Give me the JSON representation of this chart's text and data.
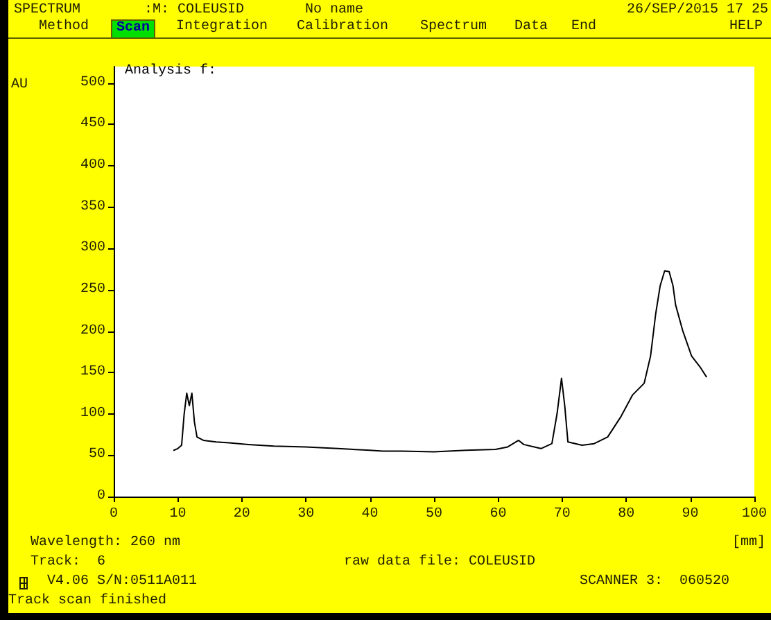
{
  "chart_data": {
    "type": "line",
    "xlabel": "[mm]",
    "ylabel": "AU",
    "annotations": [
      "SPECTRUM",
      ":M: COLEUSID",
      "No name",
      "26/SEP/2015 17 25",
      "Method",
      "Scan",
      "Integration",
      "Calibration",
      "Spectrum",
      "Data",
      "End",
      "HELP",
      "Analysis f:",
      "Wavelength: 260 nm",
      "Track:  6",
      "raw data file: COLEUSID",
      "V4.06 S/N:0511A011",
      "SCANNER 3:  060520",
      "Track scan finished"
    ],
    "x": [
      9.4,
      10,
      10.6,
      11,
      11.4,
      11.8,
      12.2,
      12.6,
      13,
      14,
      16,
      18,
      21,
      25,
      30,
      35,
      40,
      42,
      45,
      50,
      55,
      59.6,
      61.5,
      63.2,
      64,
      66.7,
      68.4,
      69.2,
      69.9,
      70.4,
      70.9,
      73.1,
      75,
      77.1,
      79.2,
      81,
      82.8,
      83.8,
      84.6,
      85.3,
      86,
      86.7,
      87.3,
      87.7,
      88.8,
      90.2,
      91.5,
      92.5
    ],
    "series": [
      {
        "color": "#000000",
        "values": [
          56,
          58,
          62,
          100,
          125,
          110,
          125,
          90,
          72,
          68,
          66,
          65,
          63,
          61,
          60,
          58,
          56,
          55,
          55,
          54,
          56,
          57,
          60,
          68,
          63,
          58,
          64,
          100,
          143,
          110,
          66,
          62,
          64,
          72,
          97,
          123,
          137,
          170,
          221,
          255,
          273,
          272,
          255,
          232,
          201,
          170,
          157,
          145
        ]
      }
    ],
    "xlim": [
      0,
      100
    ],
    "xticks": [
      0,
      10,
      20,
      30,
      40,
      50,
      60,
      70,
      80,
      90,
      100
    ],
    "ylim": [
      0,
      520
    ],
    "yticks": [
      0,
      50,
      100,
      150,
      200,
      250,
      300,
      350,
      400,
      450,
      500
    ],
    "marker": "none",
    "line_style": "solid"
  }
}
